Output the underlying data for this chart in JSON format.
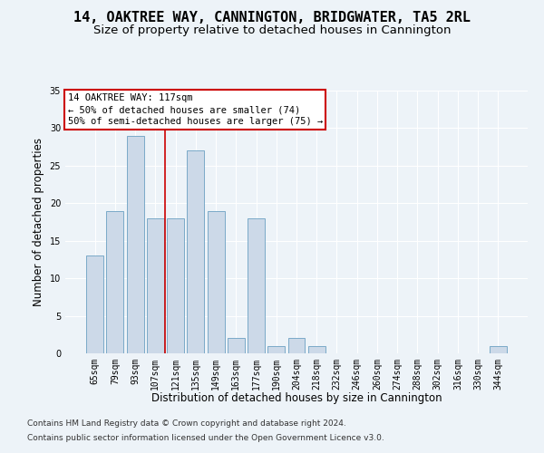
{
  "title": "14, OAKTREE WAY, CANNINGTON, BRIDGWATER, TA5 2RL",
  "subtitle": "Size of property relative to detached houses in Cannington",
  "xlabel": "Distribution of detached houses by size in Cannington",
  "ylabel": "Number of detached properties",
  "bar_labels": [
    "65sqm",
    "79sqm",
    "93sqm",
    "107sqm",
    "121sqm",
    "135sqm",
    "149sqm",
    "163sqm",
    "177sqm",
    "190sqm",
    "204sqm",
    "218sqm",
    "232sqm",
    "246sqm",
    "260sqm",
    "274sqm",
    "288sqm",
    "302sqm",
    "316sqm",
    "330sqm",
    "344sqm"
  ],
  "bar_values": [
    13,
    19,
    29,
    18,
    18,
    27,
    19,
    2,
    18,
    1,
    2,
    1,
    0,
    0,
    0,
    0,
    0,
    0,
    0,
    0,
    1
  ],
  "bar_color": "#ccd9e8",
  "bar_edge_color": "#7aaac8",
  "vline_color": "#cc0000",
  "vline_x": 3.5,
  "annotation_line1": "14 OAKTREE WAY: 117sqm",
  "annotation_line2": "← 50% of detached houses are smaller (74)",
  "annotation_line3": "50% of semi-detached houses are larger (75) →",
  "box_edge_color": "#cc0000",
  "annotation_fontsize": 7.5,
  "ylim": [
    0,
    35
  ],
  "yticks": [
    0,
    5,
    10,
    15,
    20,
    25,
    30,
    35
  ],
  "footnote_line1": "Contains HM Land Registry data © Crown copyright and database right 2024.",
  "footnote_line2": "Contains public sector information licensed under the Open Government Licence v3.0.",
  "bg_color": "#edf3f8",
  "grid_color": "#ffffff",
  "title_fontsize": 11,
  "subtitle_fontsize": 9.5,
  "xlabel_fontsize": 8.5,
  "ylabel_fontsize": 8.5,
  "tick_fontsize": 7,
  "footnote_fontsize": 6.5
}
